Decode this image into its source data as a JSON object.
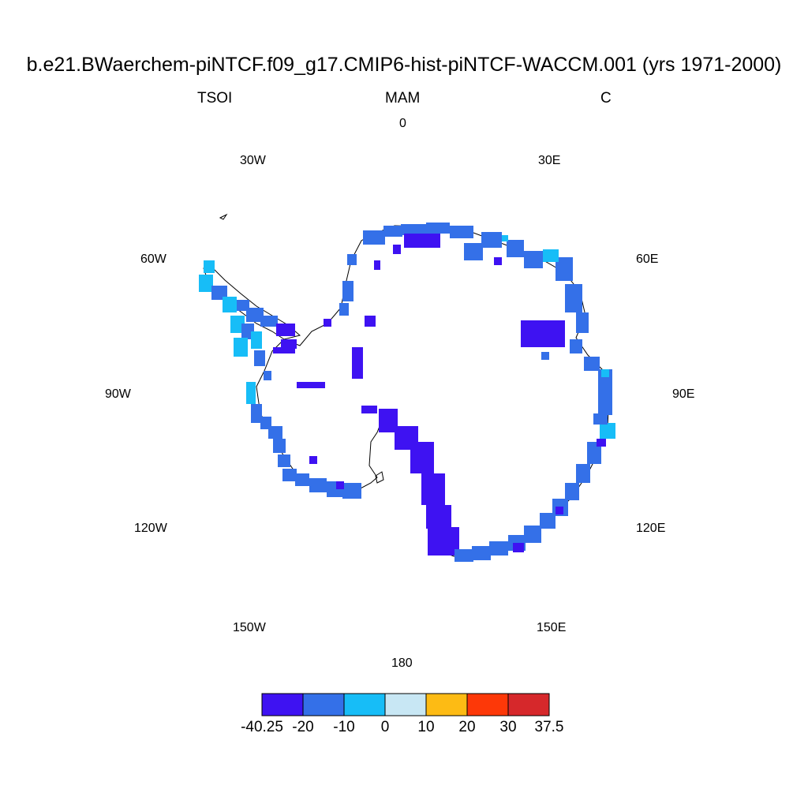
{
  "title": "b.e21.BWaerchem-piNTCF.f09_g17.CMIP6-hist-piNTCF-WACCM.001 (yrs 1971-2000)",
  "left_label": "TSOI",
  "center_label": "MAM",
  "right_label": "C",
  "longitude_labels": {
    "l0": "0",
    "l30e": "30E",
    "l60e": "60E",
    "l90e": "90E",
    "l120e": "120E",
    "l150e": "150E",
    "l180": "180",
    "l150w": "150W",
    "l120w": "120W",
    "l90w": "90W",
    "l60w": "60W",
    "l30w": "30W"
  },
  "colorbar": {
    "colors": [
      "#3e12f2",
      "#3470e8",
      "#17bdf7",
      "#c8e7f4",
      "#fdbb14",
      "#fd3808",
      "#d6282b"
    ],
    "ticks": [
      "-40.25",
      "-20",
      "-10",
      "0",
      "10",
      "20",
      "30",
      "37.5"
    ]
  },
  "map": {
    "projection": "south polar stereographic",
    "land_color": "#ffffff",
    "coastline_color": "#000000"
  }
}
